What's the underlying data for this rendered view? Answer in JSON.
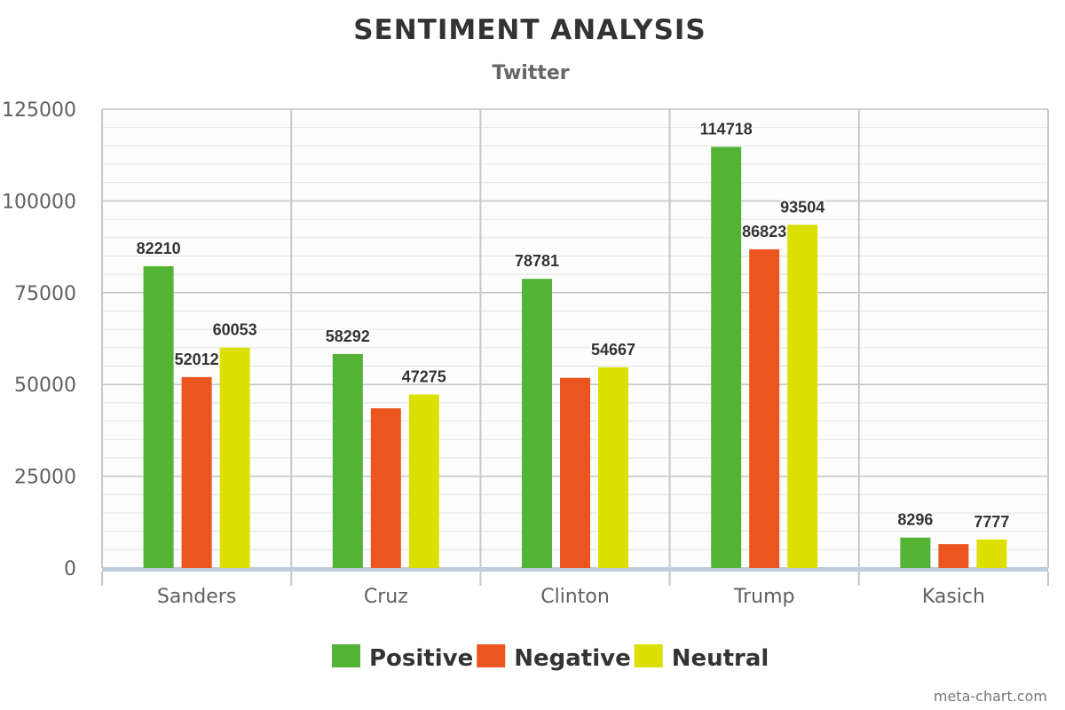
{
  "chart_data": {
    "type": "bar",
    "title": "SENTIMENT ANALYSIS",
    "subtitle": "Twitter",
    "xlabel": "",
    "ylabel": "",
    "categories": [
      "Sanders",
      "Cruz",
      "Clinton",
      "Trump",
      "Kasich"
    ],
    "series": [
      {
        "name": "Positive",
        "color": "#52b334",
        "values": [
          82210,
          58292,
          78781,
          114718,
          8296
        ],
        "labels": [
          "82210",
          "58292",
          "78781",
          "114718",
          "8296"
        ]
      },
      {
        "name": "Negative",
        "color": "#ea561e",
        "values": [
          52012,
          43500,
          51800,
          86823,
          6500
        ],
        "labels": [
          "52012",
          "",
          "",
          "86823",
          ""
        ]
      },
      {
        "name": "Neutral",
        "color": "#dce000",
        "values": [
          60053,
          47275,
          54667,
          93504,
          7777
        ],
        "labels": [
          "60053",
          "47275",
          "54667",
          "93504",
          "7777"
        ]
      }
    ],
    "ylim": [
      0,
      125000
    ],
    "yticks": [
      0,
      25000,
      50000,
      75000,
      100000,
      125000
    ],
    "ytick_labels": [
      "0",
      "25000",
      "50000",
      "75000",
      "100000",
      "125000"
    ],
    "grid": true,
    "legend": "bottom-center"
  },
  "credit": "meta-chart.com"
}
